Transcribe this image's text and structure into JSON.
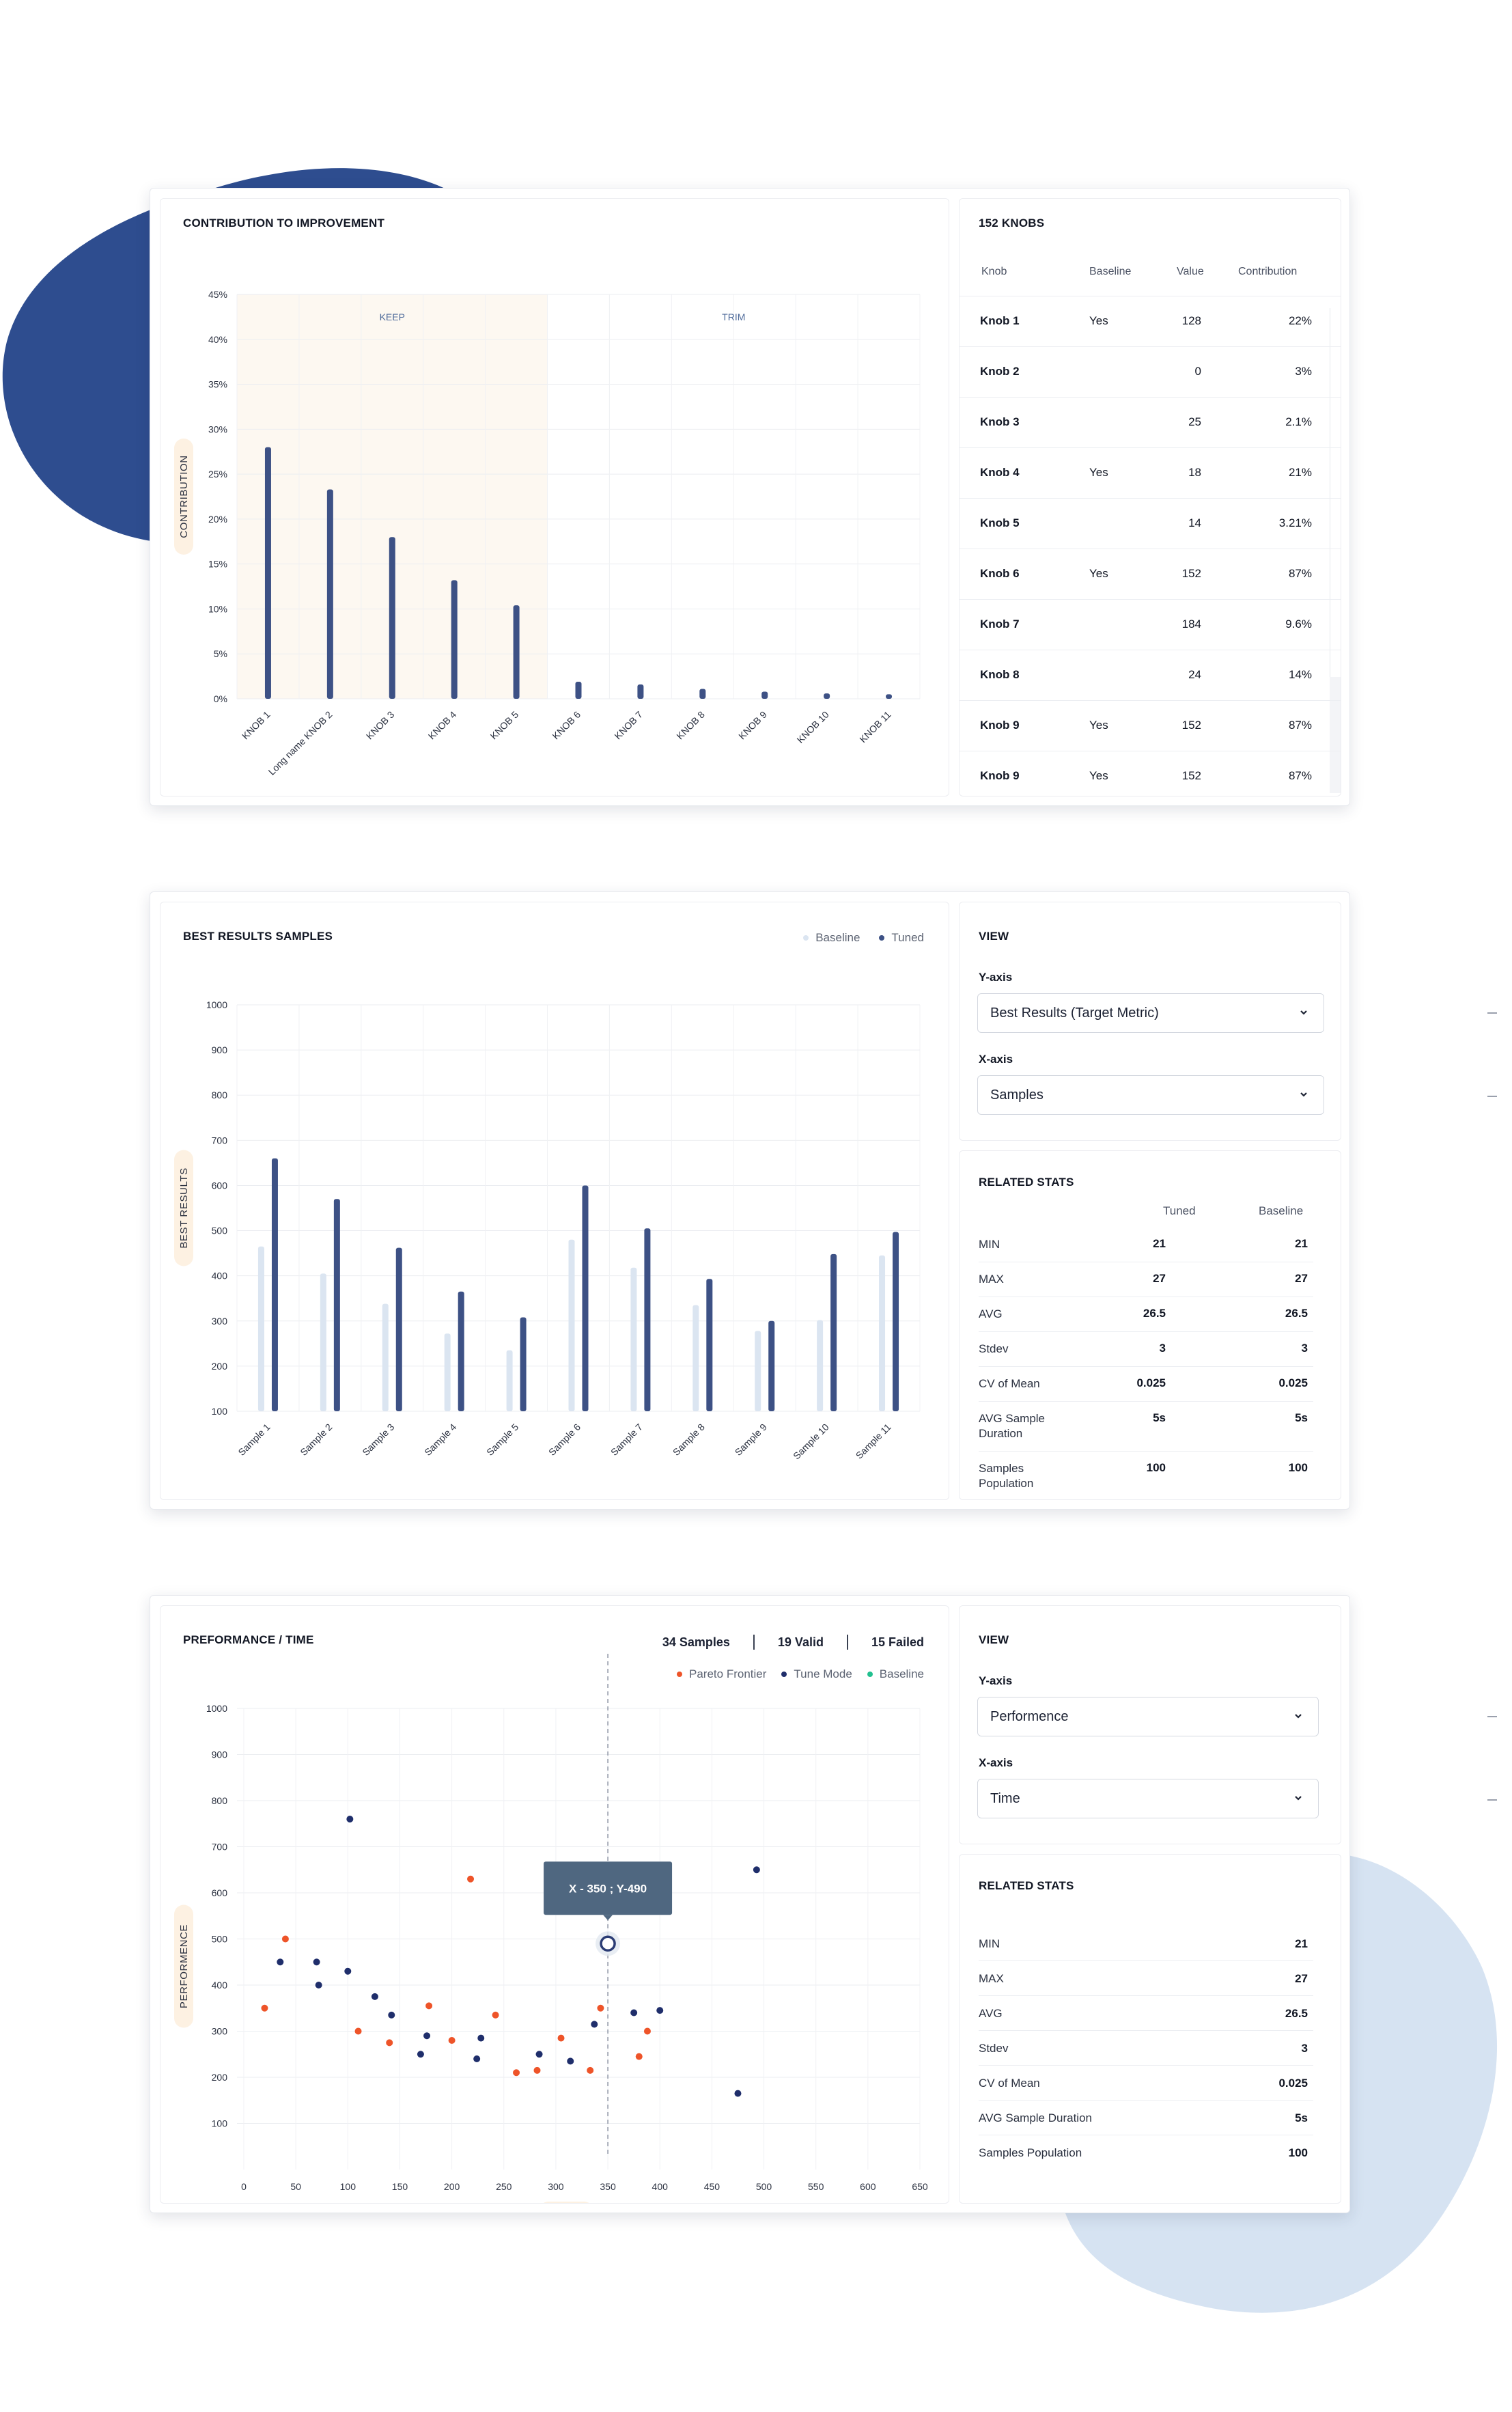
{
  "colors": {
    "navy": "#3d5185",
    "navy_dark": "#2b3c74",
    "baseline_bar": "#dbe5f1",
    "keep_band": "#fdf8f1",
    "pareto": "#ee5429",
    "tune": "#1f2e6b",
    "baseline_dot": "#22c08f",
    "blob_dark": "#2e4d8f",
    "blob_light": "#d6e3f2",
    "tooltip": "#4f6780"
  },
  "contribution": {
    "title": "CONTRIBUTION TO IMPROVEMENT",
    "keep_label": "KEEP",
    "trim_label": "TRIM",
    "chart_data": {
      "type": "bar",
      "ylabel": "CONTRIBUTION",
      "xlabel": "",
      "ylim": [
        0,
        45
      ],
      "yticks": [
        0,
        5,
        10,
        15,
        20,
        25,
        30,
        35,
        40,
        45
      ],
      "y_suffix": "%",
      "categories": [
        "KNOB 1",
        "Long name KNOB 2",
        "KNOB 3",
        "KNOB 4",
        "KNOB 5",
        "KNOB 6",
        "KNOB 7",
        "KNOB 8",
        "KNOB 9",
        "KNOB 10",
        "KNOB 11"
      ],
      "values": [
        28,
        23.3,
        18,
        13.2,
        10.4,
        1.9,
        1.6,
        1.1,
        0.8,
        0.6,
        0.5
      ],
      "keep_count": 5
    }
  },
  "knobs": {
    "title": "152 KNOBS",
    "headers": {
      "knob": "Knob",
      "baseline": "Baseline",
      "value": "Value",
      "contribution": "Contribution"
    },
    "rows": [
      {
        "knob": "Knob 1",
        "baseline": "Yes",
        "value": "128",
        "contribution": "22%"
      },
      {
        "knob": "Knob 2",
        "baseline": "",
        "value": "0",
        "contribution": "3%"
      },
      {
        "knob": "Knob 3",
        "baseline": "",
        "value": "25",
        "contribution": "2.1%"
      },
      {
        "knob": "Knob 4",
        "baseline": "Yes",
        "value": "18",
        "contribution": "21%"
      },
      {
        "knob": "Knob 5",
        "baseline": "",
        "value": "14",
        "contribution": "3.21%"
      },
      {
        "knob": "Knob 6",
        "baseline": "Yes",
        "value": "152",
        "contribution": "87%"
      },
      {
        "knob": "Knob 7",
        "baseline": "",
        "value": "184",
        "contribution": "9.6%"
      },
      {
        "knob": "Knob 8",
        "baseline": "",
        "value": "24",
        "contribution": "14%"
      },
      {
        "knob": "Knob 9",
        "baseline": "Yes",
        "value": "152",
        "contribution": "87%"
      },
      {
        "knob": "Knob 9",
        "baseline": "Yes",
        "value": "152",
        "contribution": "87%"
      }
    ]
  },
  "best": {
    "title": "BEST RESULTS SAMPLES",
    "legend": {
      "baseline": "Baseline",
      "tuned": "Tuned"
    },
    "chart_data": {
      "type": "bar",
      "ylabel": "BEST RESULTS",
      "xlabel": "",
      "ylim": [
        100,
        1000
      ],
      "yticks": [
        100,
        200,
        300,
        400,
        500,
        600,
        700,
        800,
        900,
        1000
      ],
      "categories": [
        "Sample 1",
        "Sample 2",
        "Sample 3",
        "Sample 4",
        "Sample 5",
        "Sample 6",
        "Sample 7",
        "Sample 8",
        "Sample 9",
        "Sample 10",
        "Sample 11"
      ],
      "series": [
        {
          "name": "Baseline",
          "values": [
            465,
            405,
            338,
            272,
            235,
            480,
            418,
            335,
            278,
            302,
            445
          ]
        },
        {
          "name": "Tuned",
          "values": [
            660,
            570,
            462,
            365,
            308,
            600,
            505,
            393,
            300,
            448,
            497
          ]
        }
      ]
    }
  },
  "view1": {
    "title": "VIEW",
    "yaxis_label": "Y-axis",
    "yaxis_value": "Best Results (Target Metric)",
    "xaxis_label": "X-axis",
    "xaxis_value": "Samples"
  },
  "stats1": {
    "title": "RELATED STATS",
    "col_tuned": "Tuned",
    "col_baseline": "Baseline",
    "rows": [
      {
        "label": "MIN",
        "tuned": "21",
        "baseline": "21"
      },
      {
        "label": "MAX",
        "tuned": "27",
        "baseline": "27"
      },
      {
        "label": "AVG",
        "tuned": "26.5",
        "baseline": "26.5"
      },
      {
        "label": "Stdev",
        "tuned": "3",
        "baseline": "3"
      },
      {
        "label": "CV of Mean",
        "tuned": "0.025",
        "baseline": "0.025"
      },
      {
        "label": "AVG Sample\nDuration",
        "tuned": "5s",
        "baseline": "5s"
      },
      {
        "label": "Samples\nPopulation",
        "tuned": "100",
        "baseline": "100"
      }
    ]
  },
  "perf": {
    "title": "PREFORMANCE / TIME",
    "counts": {
      "samples": "34 Samples",
      "valid": "19 Valid",
      "failed": "15 Failed"
    },
    "legend": {
      "pareto": "Pareto Frontier",
      "tune": "Tune Mode",
      "baseline": "Baseline"
    },
    "tooltip": "X - 350 ; Y-490",
    "chart_data": {
      "type": "scatter",
      "ylabel": "PERFORMENCE",
      "xlabel": "TIME",
      "xlim": [
        0,
        650
      ],
      "ylim": [
        0,
        1000
      ],
      "xticks": [
        0,
        50,
        100,
        150,
        200,
        250,
        300,
        350,
        400,
        450,
        500,
        550,
        600,
        650
      ],
      "yticks": [
        100,
        200,
        300,
        400,
        500,
        600,
        700,
        800,
        900,
        1000
      ],
      "highlight": {
        "x": 350,
        "y": 490
      },
      "series": [
        {
          "name": "Pareto Frontier",
          "points": [
            [
              20,
              350
            ],
            [
              40,
              500
            ],
            [
              110,
              300
            ],
            [
              140,
              275
            ],
            [
              178,
              355
            ],
            [
              200,
              280
            ],
            [
              218,
              630
            ],
            [
              242,
              335
            ],
            [
              262,
              210
            ],
            [
              282,
              215
            ],
            [
              305,
              285
            ],
            [
              333,
              215
            ],
            [
              343,
              350
            ],
            [
              380,
              245
            ],
            [
              388,
              300
            ]
          ]
        },
        {
          "name": "Tune Mode",
          "points": [
            [
              35,
              450
            ],
            [
              70,
              450
            ],
            [
              72,
              400
            ],
            [
              102,
              760
            ],
            [
              100,
              430
            ],
            [
              126,
              375
            ],
            [
              142,
              335
            ],
            [
              170,
              250
            ],
            [
              176,
              290
            ],
            [
              224,
              240
            ],
            [
              228,
              285
            ],
            [
              284,
              250
            ],
            [
              314,
              235
            ],
            [
              337,
              315
            ],
            [
              375,
              340
            ],
            [
              400,
              345
            ],
            [
              475,
              165
            ],
            [
              493,
              650
            ]
          ]
        },
        {
          "name": "Baseline",
          "points": []
        }
      ]
    }
  },
  "view2": {
    "title": "VIEW",
    "yaxis_label": "Y-axis",
    "yaxis_value": "Performence",
    "xaxis_label": "X-axis",
    "xaxis_value": "Time"
  },
  "stats2": {
    "title": "RELATED STATS",
    "rows": [
      {
        "label": "MIN",
        "value": "21"
      },
      {
        "label": "MAX",
        "value": "27"
      },
      {
        "label": "AVG",
        "value": "26.5"
      },
      {
        "label": "Stdev",
        "value": "3"
      },
      {
        "label": "CV of Mean",
        "value": "0.025"
      },
      {
        "label": "AVG Sample Duration",
        "value": "5s"
      },
      {
        "label": "Samples Population",
        "value": "100"
      }
    ]
  }
}
